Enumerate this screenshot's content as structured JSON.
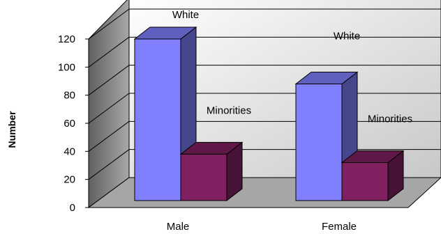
{
  "chart_data": {
    "type": "bar",
    "title": "",
    "xlabel": "",
    "ylabel": "Number",
    "ylim": [
      0,
      120
    ],
    "y_ticks": [
      0,
      20,
      40,
      60,
      80,
      100,
      120
    ],
    "categories": [
      "Male",
      "Female"
    ],
    "series": [
      {
        "name": "White",
        "values": [
          120,
          88
        ],
        "color": "#8080ff"
      },
      {
        "name": "Minorities",
        "values": [
          38,
          32
        ],
        "color": "#802060"
      }
    ],
    "annotations": [
      {
        "text": "White",
        "category": "Male",
        "series": "White"
      },
      {
        "text": "White",
        "category": "Female",
        "series": "White"
      },
      {
        "text": "Minorities",
        "category": "Male",
        "series": "Minorities"
      },
      {
        "text": "Minorities",
        "category": "Female",
        "series": "Minorities"
      }
    ],
    "grid": true,
    "legend": "none",
    "style": "3d-bar"
  }
}
